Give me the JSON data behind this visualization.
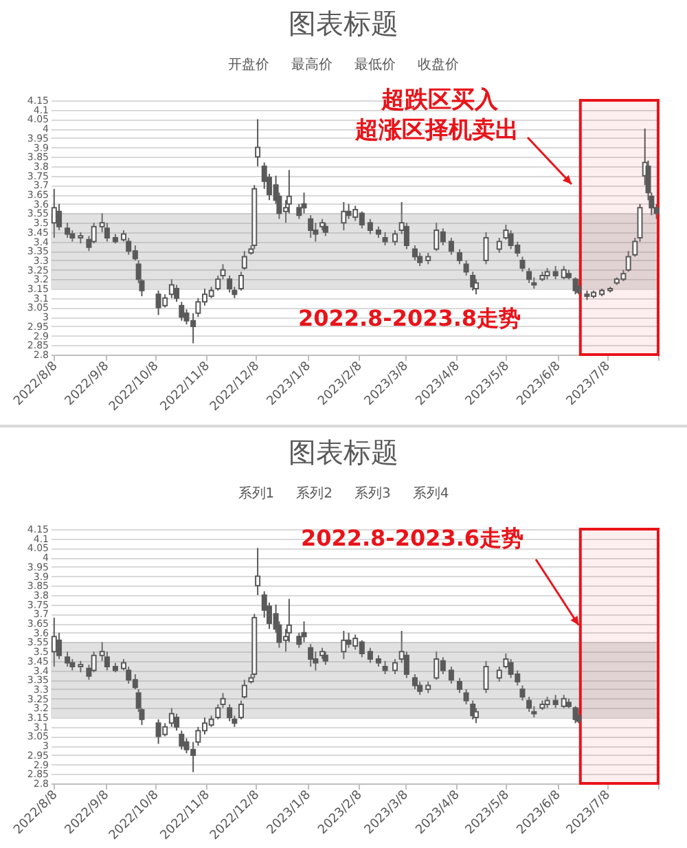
{
  "chart_data": [
    {
      "type": "candlestick",
      "title": "图表标题",
      "color": "#5a5a5a",
      "grid": "y",
      "annotations": [
        "开盘价",
        "最高价",
        "最低价",
        "收盘价",
        "超跌区买入",
        "超涨区择机卖出",
        "2022.8-2023.8走势"
      ],
      "bands": [
        {
          "axis": "y",
          "from": 3.15,
          "to": 3.55,
          "color": "#9a9a9a"
        },
        {
          "axis": "x",
          "from": "2023-06-22",
          "to": "2023-08-08",
          "color": "#e8141a"
        }
      ],
      "xlim": [
        "2022-08-06",
        "2023-08-08"
      ],
      "xticks": [
        {
          "value": "2022-08-08",
          "label": "2022/8/8"
        },
        {
          "value": "2022-09-08",
          "label": "2022/9/8"
        },
        {
          "value": "2022-10-08",
          "label": "2022/10/8"
        },
        {
          "value": "2022-11-08",
          "label": "2022/11/8"
        },
        {
          "value": "2022-12-08",
          "label": "2022/12/8"
        },
        {
          "value": "2023-01-08",
          "label": "2023/1/8"
        },
        {
          "value": "2023-02-08",
          "label": "2023/2/8"
        },
        {
          "value": "2023-03-08",
          "label": "2023/3/8"
        },
        {
          "value": "2023-04-08",
          "label": "2023/4/8"
        },
        {
          "value": "2023-05-08",
          "label": "2023/5/8"
        },
        {
          "value": "2023-06-08",
          "label": "2023/6/8"
        },
        {
          "value": "2023-07-08",
          "label": "2023/7/8"
        },
        {
          "value": "2023-08-08",
          "label": null
        }
      ],
      "ylim": [
        2.8,
        4.15
      ],
      "yticks": [
        2.8,
        2.85,
        2.9,
        2.95,
        3,
        3.05,
        3.1,
        3.15,
        3.2,
        3.25,
        3.3,
        3.35,
        3.4,
        3.45,
        3.5,
        3.55,
        3.6,
        3.65,
        3.7,
        3.75,
        3.8,
        3.85,
        3.9,
        3.95,
        4,
        4.05,
        4.1,
        4.15
      ],
      "x": [
        "2022-08-08",
        "2022-08-11",
        "2022-08-16",
        "2022-08-19",
        "2022-08-24",
        "2022-08-29",
        "2022-09-01",
        "2022-09-06",
        "2022-09-09",
        "2022-09-14",
        "2022-09-19",
        "2022-09-22",
        "2022-09-26",
        "2022-09-28",
        "2022-09-30",
        "2022-10-10",
        "2022-10-14",
        "2022-10-18",
        "2022-10-21",
        "2022-10-24",
        "2022-10-27",
        "2022-10-31",
        "2022-11-03",
        "2022-11-07",
        "2022-11-11",
        "2022-11-15",
        "2022-11-18",
        "2022-11-22",
        "2022-11-25",
        "2022-11-29",
        "2022-12-01",
        "2022-12-05",
        "2022-12-07",
        "2022-12-09",
        "2022-12-13",
        "2022-12-16",
        "2022-12-20",
        "2022-12-22",
        "2022-12-26",
        "2022-12-28",
        "2023-01-03",
        "2023-01-06",
        "2023-01-10",
        "2023-01-13",
        "2023-01-17",
        "2023-01-19",
        "2023-01-30",
        "2023-02-02",
        "2023-02-06",
        "2023-02-10",
        "2023-02-15",
        "2023-02-20",
        "2023-02-24",
        "2023-03-02",
        "2023-03-06",
        "2023-03-09",
        "2023-03-14",
        "2023-03-17",
        "2023-03-22",
        "2023-03-27",
        "2023-03-31",
        "2023-04-05",
        "2023-04-10",
        "2023-04-14",
        "2023-04-18",
        "2023-04-20",
        "2023-04-26",
        "2023-05-04",
        "2023-05-08",
        "2023-05-11",
        "2023-05-15",
        "2023-05-18",
        "2023-05-22",
        "2023-05-25",
        "2023-05-30",
        "2023-06-02",
        "2023-06-07",
        "2023-06-12",
        "2023-06-15",
        "2023-06-19",
        "2023-06-21",
        "2023-06-26",
        "2023-06-30",
        "2023-07-05",
        "2023-07-10",
        "2023-07-14",
        "2023-07-18",
        "2023-07-21",
        "2023-07-25",
        "2023-07-28",
        "2023-07-31",
        "2023-08-02",
        "2023-08-04",
        "2023-08-07"
      ],
      "ohlc": [
        [
          3.5,
          3.68,
          3.42,
          3.58
        ],
        [
          3.56,
          3.6,
          3.46,
          3.48
        ],
        [
          3.47,
          3.5,
          3.42,
          3.44
        ],
        [
          3.44,
          3.46,
          3.4,
          3.42
        ],
        [
          3.42,
          3.45,
          3.39,
          3.43
        ],
        [
          3.41,
          3.43,
          3.35,
          3.37
        ],
        [
          3.4,
          3.5,
          3.39,
          3.48
        ],
        [
          3.48,
          3.55,
          3.45,
          3.5
        ],
        [
          3.47,
          3.5,
          3.4,
          3.42
        ],
        [
          3.42,
          3.44,
          3.39,
          3.4
        ],
        [
          3.41,
          3.46,
          3.4,
          3.44
        ],
        [
          3.4,
          3.42,
          3.33,
          3.35
        ],
        [
          3.35,
          3.38,
          3.3,
          3.31
        ],
        [
          3.28,
          3.3,
          3.18,
          3.2
        ],
        [
          3.19,
          3.2,
          3.11,
          3.14
        ],
        [
          3.12,
          3.14,
          3.01,
          3.05
        ],
        [
          3.06,
          3.12,
          3.05,
          3.1
        ],
        [
          3.12,
          3.2,
          3.1,
          3.17
        ],
        [
          3.15,
          3.17,
          3.08,
          3.1
        ],
        [
          3.06,
          3.08,
          2.98,
          3
        ],
        [
          3.02,
          3.04,
          2.96,
          2.98
        ],
        [
          2.98,
          3.02,
          2.86,
          2.95
        ],
        [
          3.02,
          3.1,
          3,
          3.08
        ],
        [
          3.08,
          3.15,
          3.06,
          3.12
        ],
        [
          3.11,
          3.16,
          3.1,
          3.14
        ],
        [
          3.15,
          3.22,
          3.14,
          3.2
        ],
        [
          3.22,
          3.28,
          3.2,
          3.25
        ],
        [
          3.2,
          3.22,
          3.13,
          3.15
        ],
        [
          3.14,
          3.16,
          3.1,
          3.12
        ],
        [
          3.15,
          3.24,
          3.14,
          3.22
        ],
        [
          3.26,
          3.35,
          3.25,
          3.32
        ],
        [
          3.34,
          3.38,
          3.33,
          3.36
        ],
        [
          3.38,
          3.7,
          3.36,
          3.68
        ],
        [
          3.85,
          4.05,
          3.8,
          3.9
        ],
        [
          3.8,
          3.82,
          3.68,
          3.72
        ],
        [
          3.74,
          3.76,
          3.62,
          3.65
        ],
        [
          3.7,
          3.75,
          3.6,
          3.62
        ],
        [
          3.64,
          3.66,
          3.52,
          3.55
        ],
        [
          3.56,
          3.62,
          3.5,
          3.58
        ],
        [
          3.6,
          3.78,
          3.55,
          3.64
        ],
        [
          3.58,
          3.6,
          3.52,
          3.54
        ],
        [
          3.6,
          3.66,
          3.55,
          3.58
        ],
        [
          3.52,
          3.54,
          3.42,
          3.46
        ],
        [
          3.46,
          3.5,
          3.4,
          3.44
        ],
        [
          3.48,
          3.52,
          3.46,
          3.5
        ],
        [
          3.48,
          3.5,
          3.43,
          3.45
        ],
        [
          3.5,
          3.61,
          3.46,
          3.56
        ],
        [
          3.56,
          3.6,
          3.52,
          3.54
        ],
        [
          3.53,
          3.59,
          3.51,
          3.57
        ],
        [
          3.55,
          3.56,
          3.47,
          3.49
        ],
        [
          3.5,
          3.52,
          3.44,
          3.46
        ],
        [
          3.46,
          3.48,
          3.42,
          3.44
        ],
        [
          3.42,
          3.45,
          3.38,
          3.4
        ],
        [
          3.4,
          3.46,
          3.38,
          3.44
        ],
        [
          3.46,
          3.61,
          3.44,
          3.5
        ],
        [
          3.48,
          3.5,
          3.36,
          3.38
        ],
        [
          3.36,
          3.38,
          3.3,
          3.32
        ],
        [
          3.32,
          3.34,
          3.27,
          3.29
        ],
        [
          3.3,
          3.34,
          3.28,
          3.32
        ],
        [
          3.36,
          3.5,
          3.35,
          3.46
        ],
        [
          3.45,
          3.47,
          3.38,
          3.4
        ],
        [
          3.4,
          3.42,
          3.33,
          3.35
        ],
        [
          3.34,
          3.36,
          3.28,
          3.3
        ],
        [
          3.28,
          3.3,
          3.22,
          3.24
        ],
        [
          3.22,
          3.24,
          3.14,
          3.16
        ],
        [
          3.15,
          3.2,
          3.12,
          3.18
        ],
        [
          3.3,
          3.45,
          3.28,
          3.42
        ],
        [
          3.36,
          3.42,
          3.34,
          3.4
        ],
        [
          3.42,
          3.49,
          3.41,
          3.46
        ],
        [
          3.44,
          3.46,
          3.36,
          3.38
        ],
        [
          3.38,
          3.4,
          3.32,
          3.34
        ],
        [
          3.3,
          3.32,
          3.24,
          3.26
        ],
        [
          3.24,
          3.26,
          3.18,
          3.2
        ],
        [
          3.18,
          3.21,
          3.15,
          3.17
        ],
        [
          3.2,
          3.24,
          3.19,
          3.22
        ],
        [
          3.22,
          3.26,
          3.2,
          3.24
        ],
        [
          3.24,
          3.27,
          3.2,
          3.22
        ],
        [
          3.21,
          3.27,
          3.2,
          3.25
        ],
        [
          3.23,
          3.25,
          3.2,
          3.21
        ],
        [
          3.2,
          3.21,
          3.12,
          3.14
        ],
        [
          3.16,
          3.2,
          3.12,
          3.13
        ],
        [
          3.12,
          3.14,
          3.09,
          3.11
        ],
        [
          3.11,
          3.14,
          3.1,
          3.13
        ],
        [
          3.12,
          3.15,
          3.11,
          3.14
        ],
        [
          3.14,
          3.16,
          3.13,
          3.15
        ],
        [
          3.18,
          3.21,
          3.17,
          3.2
        ],
        [
          3.2,
          3.25,
          3.19,
          3.23
        ],
        [
          3.25,
          3.35,
          3.24,
          3.32
        ],
        [
          3.33,
          3.42,
          3.32,
          3.4
        ],
        [
          3.42,
          3.6,
          3.4,
          3.58
        ],
        [
          3.75,
          4,
          3.7,
          3.82
        ],
        [
          3.8,
          3.83,
          3.62,
          3.66
        ],
        [
          3.64,
          3.66,
          3.54,
          3.58
        ],
        [
          3.58,
          3.6,
          3.52,
          3.55
        ]
      ]
    },
    {
      "type": "candlestick",
      "title": "图表标题",
      "color": "#5a5a5a",
      "grid": "y",
      "annotations": [
        "系列1",
        "系列2",
        "系列3",
        "系列4",
        {
          "text": "2022.8-2023.6走势",
          "x": "2023-06-21",
          "y": 3.64
        }
      ],
      "bands": [
        {
          "axis": "y",
          "from": 3.15,
          "to": 3.55,
          "color": "#9a9a9a"
        },
        {
          "axis": "x",
          "from": "2023-06-22",
          "to": "2023-08-08",
          "color": "#e8141a"
        }
      ],
      "xlim": [
        "2022-08-06",
        "2023-08-08"
      ],
      "xticks": [
        {
          "value": "2022-08-08",
          "label": "2022/8/8"
        },
        {
          "value": "2022-09-08",
          "label": "2022/9/8"
        },
        {
          "value": "2022-10-08",
          "label": "2022/10/8"
        },
        {
          "value": "2022-11-08",
          "label": "2022/11/8"
        },
        {
          "value": "2022-12-08",
          "label": "2022/12/8"
        },
        {
          "value": "2023-01-08",
          "label": "2023/1/8"
        },
        {
          "value": "2023-02-08",
          "label": "2023/2/8"
        },
        {
          "value": "2023-03-08",
          "label": "2023/3/8"
        },
        {
          "value": "2023-04-08",
          "label": "2023/4/8"
        },
        {
          "value": "2023-05-08",
          "label": "2023/5/8"
        },
        {
          "value": "2023-06-08",
          "label": "2023/6/8"
        },
        {
          "value": "2023-07-08",
          "label": "2023/7/8"
        },
        {
          "value": "2023-08-08",
          "label": null
        }
      ],
      "ylim": [
        2.8,
        4.15
      ],
      "yticks": [
        2.8,
        2.85,
        2.9,
        2.95,
        3,
        3.05,
        3.1,
        3.15,
        3.2,
        3.25,
        3.3,
        3.35,
        3.4,
        3.45,
        3.5,
        3.55,
        3.6,
        3.65,
        3.7,
        3.75,
        3.8,
        3.85,
        3.9,
        3.95,
        4,
        4.05,
        4.1,
        4.15
      ],
      "x": [
        "2022-08-08",
        "2022-08-11",
        "2022-08-16",
        "2022-08-19",
        "2022-08-24",
        "2022-08-29",
        "2022-09-01",
        "2022-09-06",
        "2022-09-09",
        "2022-09-14",
        "2022-09-19",
        "2022-09-22",
        "2022-09-26",
        "2022-09-28",
        "2022-09-30",
        "2022-10-10",
        "2022-10-14",
        "2022-10-18",
        "2022-10-21",
        "2022-10-24",
        "2022-10-27",
        "2022-10-31",
        "2022-11-03",
        "2022-11-07",
        "2022-11-11",
        "2022-11-15",
        "2022-11-18",
        "2022-11-22",
        "2022-11-25",
        "2022-11-29",
        "2022-12-01",
        "2022-12-05",
        "2022-12-07",
        "2022-12-09",
        "2022-12-13",
        "2022-12-16",
        "2022-12-20",
        "2022-12-22",
        "2022-12-26",
        "2022-12-28",
        "2023-01-03",
        "2023-01-06",
        "2023-01-10",
        "2023-01-13",
        "2023-01-17",
        "2023-01-19",
        "2023-01-30",
        "2023-02-02",
        "2023-02-06",
        "2023-02-10",
        "2023-02-15",
        "2023-02-20",
        "2023-02-24",
        "2023-03-02",
        "2023-03-06",
        "2023-03-09",
        "2023-03-14",
        "2023-03-17",
        "2023-03-22",
        "2023-03-27",
        "2023-03-31",
        "2023-04-05",
        "2023-04-10",
        "2023-04-14",
        "2023-04-18",
        "2023-04-20",
        "2023-04-26",
        "2023-05-04",
        "2023-05-08",
        "2023-05-11",
        "2023-05-15",
        "2023-05-18",
        "2023-05-22",
        "2023-05-25",
        "2023-05-30",
        "2023-06-02",
        "2023-06-07",
        "2023-06-12",
        "2023-06-15",
        "2023-06-19",
        "2023-06-21"
      ],
      "ohlc": [
        [
          3.5,
          3.68,
          3.42,
          3.58
        ],
        [
          3.56,
          3.6,
          3.46,
          3.48
        ],
        [
          3.47,
          3.5,
          3.42,
          3.44
        ],
        [
          3.44,
          3.46,
          3.4,
          3.42
        ],
        [
          3.42,
          3.45,
          3.39,
          3.43
        ],
        [
          3.41,
          3.43,
          3.35,
          3.37
        ],
        [
          3.4,
          3.5,
          3.39,
          3.48
        ],
        [
          3.48,
          3.55,
          3.45,
          3.5
        ],
        [
          3.47,
          3.5,
          3.4,
          3.42
        ],
        [
          3.42,
          3.44,
          3.39,
          3.4
        ],
        [
          3.41,
          3.46,
          3.4,
          3.44
        ],
        [
          3.4,
          3.42,
          3.33,
          3.35
        ],
        [
          3.35,
          3.38,
          3.3,
          3.31
        ],
        [
          3.28,
          3.3,
          3.18,
          3.2
        ],
        [
          3.19,
          3.2,
          3.11,
          3.14
        ],
        [
          3.12,
          3.14,
          3.01,
          3.05
        ],
        [
          3.06,
          3.12,
          3.05,
          3.1
        ],
        [
          3.12,
          3.2,
          3.1,
          3.17
        ],
        [
          3.15,
          3.17,
          3.08,
          3.1
        ],
        [
          3.06,
          3.08,
          2.98,
          3
        ],
        [
          3.02,
          3.04,
          2.96,
          2.98
        ],
        [
          2.98,
          3.02,
          2.86,
          2.95
        ],
        [
          3.02,
          3.1,
          3,
          3.08
        ],
        [
          3.08,
          3.15,
          3.06,
          3.12
        ],
        [
          3.11,
          3.16,
          3.1,
          3.14
        ],
        [
          3.15,
          3.22,
          3.14,
          3.2
        ],
        [
          3.22,
          3.28,
          3.2,
          3.25
        ],
        [
          3.2,
          3.22,
          3.13,
          3.15
        ],
        [
          3.14,
          3.16,
          3.1,
          3.12
        ],
        [
          3.15,
          3.24,
          3.14,
          3.22
        ],
        [
          3.26,
          3.35,
          3.25,
          3.32
        ],
        [
          3.34,
          3.38,
          3.33,
          3.36
        ],
        [
          3.38,
          3.7,
          3.36,
          3.68
        ],
        [
          3.85,
          4.05,
          3.8,
          3.9
        ],
        [
          3.8,
          3.82,
          3.68,
          3.72
        ],
        [
          3.74,
          3.76,
          3.62,
          3.65
        ],
        [
          3.7,
          3.75,
          3.6,
          3.62
        ],
        [
          3.64,
          3.66,
          3.52,
          3.55
        ],
        [
          3.56,
          3.62,
          3.5,
          3.58
        ],
        [
          3.6,
          3.78,
          3.55,
          3.64
        ],
        [
          3.58,
          3.6,
          3.52,
          3.54
        ],
        [
          3.6,
          3.66,
          3.55,
          3.58
        ],
        [
          3.52,
          3.54,
          3.42,
          3.46
        ],
        [
          3.46,
          3.5,
          3.4,
          3.44
        ],
        [
          3.48,
          3.52,
          3.46,
          3.5
        ],
        [
          3.48,
          3.5,
          3.43,
          3.45
        ],
        [
          3.5,
          3.61,
          3.46,
          3.56
        ],
        [
          3.56,
          3.6,
          3.52,
          3.54
        ],
        [
          3.53,
          3.59,
          3.51,
          3.57
        ],
        [
          3.55,
          3.56,
          3.47,
          3.49
        ],
        [
          3.5,
          3.52,
          3.44,
          3.46
        ],
        [
          3.46,
          3.48,
          3.42,
          3.44
        ],
        [
          3.42,
          3.45,
          3.38,
          3.4
        ],
        [
          3.4,
          3.46,
          3.38,
          3.44
        ],
        [
          3.46,
          3.61,
          3.44,
          3.5
        ],
        [
          3.48,
          3.5,
          3.36,
          3.38
        ],
        [
          3.36,
          3.38,
          3.3,
          3.32
        ],
        [
          3.32,
          3.34,
          3.27,
          3.29
        ],
        [
          3.3,
          3.34,
          3.28,
          3.32
        ],
        [
          3.36,
          3.5,
          3.35,
          3.46
        ],
        [
          3.45,
          3.47,
          3.38,
          3.4
        ],
        [
          3.4,
          3.42,
          3.33,
          3.35
        ],
        [
          3.34,
          3.36,
          3.28,
          3.3
        ],
        [
          3.28,
          3.3,
          3.22,
          3.24
        ],
        [
          3.22,
          3.24,
          3.14,
          3.16
        ],
        [
          3.15,
          3.2,
          3.12,
          3.18
        ],
        [
          3.3,
          3.45,
          3.28,
          3.42
        ],
        [
          3.36,
          3.42,
          3.34,
          3.4
        ],
        [
          3.42,
          3.49,
          3.41,
          3.46
        ],
        [
          3.44,
          3.46,
          3.36,
          3.38
        ],
        [
          3.38,
          3.4,
          3.32,
          3.34
        ],
        [
          3.3,
          3.32,
          3.24,
          3.26
        ],
        [
          3.24,
          3.26,
          3.18,
          3.2
        ],
        [
          3.18,
          3.21,
          3.15,
          3.17
        ],
        [
          3.2,
          3.24,
          3.19,
          3.22
        ],
        [
          3.22,
          3.26,
          3.2,
          3.24
        ],
        [
          3.24,
          3.27,
          3.2,
          3.22
        ],
        [
          3.21,
          3.27,
          3.2,
          3.25
        ],
        [
          3.23,
          3.25,
          3.2,
          3.21
        ],
        [
          3.2,
          3.21,
          3.12,
          3.14
        ],
        [
          3.16,
          3.2,
          3.12,
          3.13
        ]
      ]
    }
  ]
}
